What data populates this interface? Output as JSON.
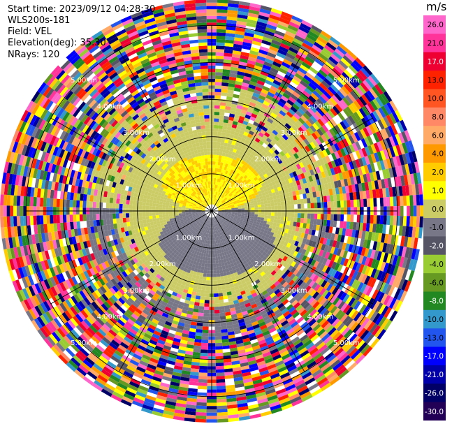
{
  "info": {
    "start_time": "Start time: 2023/09/12 04:28:30",
    "instrument": "WLS200s-181",
    "field": "Field: VEL",
    "elevation": "Elevation(deg): 35.30",
    "nrays": "NRays: 120"
  },
  "colorbar": {
    "unit": "m/s",
    "ticks": [
      "26.0",
      "21.0",
      "17.0",
      "13.0",
      "10.0",
      "8.0",
      "6.0",
      "4.0",
      "2.0",
      "1.0",
      "0.0",
      "-1.0",
      "-2.0",
      "-4.0",
      "-6.0",
      "-8.0",
      "-10.0",
      "-13.0",
      "-17.0",
      "-21.0",
      "-26.0",
      "-30.0"
    ],
    "colors": [
      "#ff66cc",
      "#ff3399",
      "#ee0033",
      "#ff2200",
      "#ff5522",
      "#ff8866",
      "#ffaa66",
      "#ff9900",
      "#ffcc00",
      "#ffff00",
      "#cccc66",
      "#777788",
      "#555566",
      "#99cc33",
      "#669922",
      "#228822",
      "#3399cc",
      "#2255ee",
      "#0000ff",
      "#0000aa",
      "#000066",
      "#220055"
    ]
  },
  "chart_data": {
    "type": "heatmap",
    "projection": "polar-ppi",
    "field": "VEL",
    "units": "m/s",
    "nrays": 120,
    "range_rings_km": [
      1.0,
      2.0,
      3.0,
      4.0,
      5.0
    ],
    "ring_labels": [
      "1.00km",
      "2.00km",
      "3.00km",
      "4.00km",
      "5.00km"
    ],
    "max_range_km": 5.7,
    "spoke_angles_deg": [
      0,
      30,
      60,
      90,
      120,
      150,
      180,
      210,
      240,
      270,
      300,
      330
    ],
    "vmin": -30.0,
    "vmax": 26.0,
    "pattern": {
      "north_lobe_velocity": 3.0,
      "south_lobe_velocity": -3.0,
      "background_velocity": 0.0,
      "coherent_range_km": 2.6,
      "outer_region": "noise"
    }
  }
}
